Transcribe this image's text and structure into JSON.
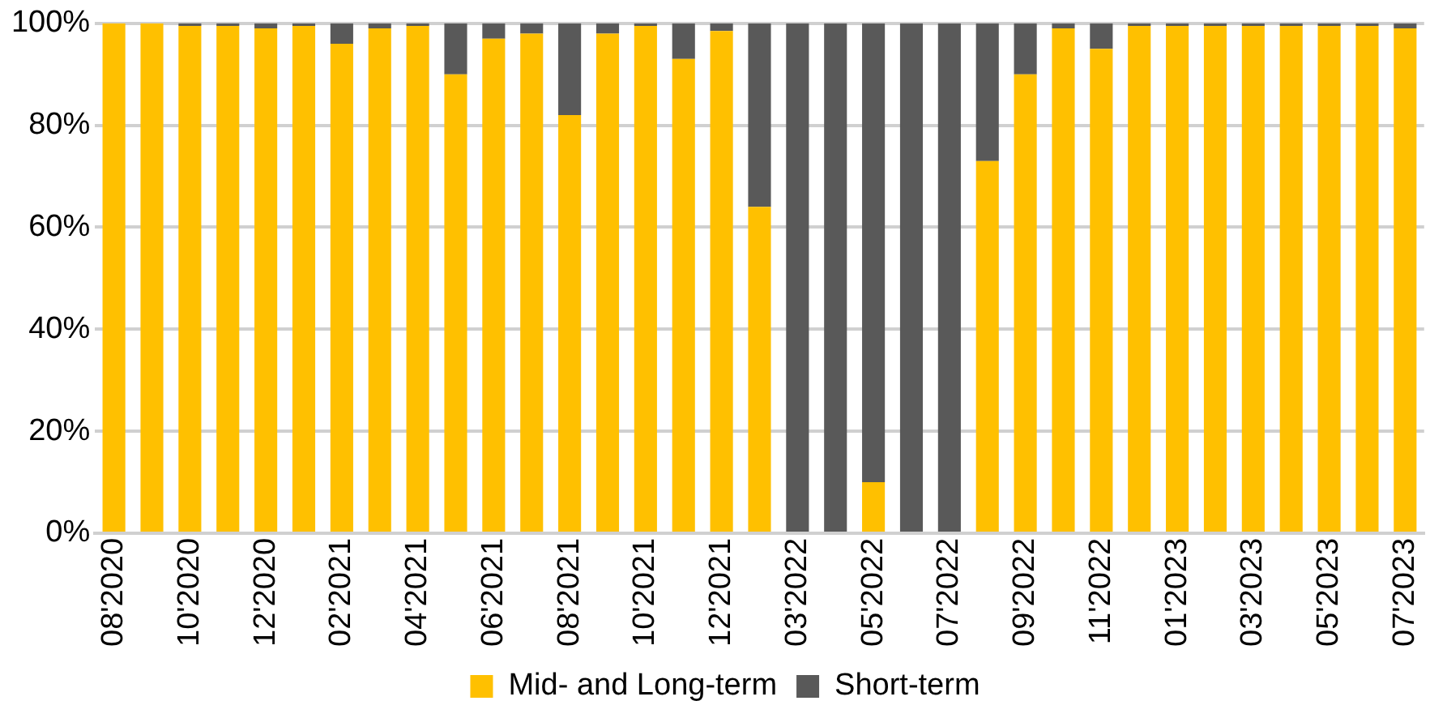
{
  "chart_data": {
    "type": "bar",
    "stacked": true,
    "categories": [
      "08'2020",
      null,
      "10'2020",
      null,
      "12'2020",
      null,
      "02'2021",
      null,
      "04'2021",
      null,
      "06'2021",
      null,
      "08'2021",
      null,
      "10'2021",
      null,
      "12'2021",
      null,
      "03'2022",
      null,
      "05'2022",
      null,
      "07'2022",
      null,
      "09'2022",
      null,
      "11'2022",
      null,
      "01'2023",
      null,
      "03'2023",
      null,
      "05'2023",
      null,
      "07'2023"
    ],
    "series": [
      {
        "name": "Mid- and Long-term",
        "color": "#ffc000",
        "values": [
          100,
          100,
          99.5,
          99.5,
          99,
          99.5,
          96,
          99,
          99.5,
          90,
          97,
          98,
          82,
          98,
          99.5,
          93,
          98.5,
          64,
          0,
          0,
          10,
          0,
          0,
          73,
          90,
          99,
          95,
          99.5,
          99.5,
          99.5,
          99.5,
          99.5,
          99.5,
          99.5,
          99
        ]
      },
      {
        "name": "Short-term",
        "color": "#595959",
        "values": [
          0,
          0,
          0.5,
          0.5,
          1,
          0.5,
          4,
          1,
          0.5,
          10,
          3,
          2,
          18,
          2,
          0.5,
          7,
          1.5,
          36,
          100,
          100,
          90,
          100,
          100,
          27,
          10,
          1,
          5,
          0.5,
          0.5,
          0.5,
          0.5,
          0.5,
          0.5,
          0.5,
          1
        ]
      }
    ],
    "ylim": [
      0,
      100
    ],
    "yticks": [
      {
        "value": 0,
        "label": "0%"
      },
      {
        "value": 20,
        "label": "20%"
      },
      {
        "value": 40,
        "label": "40%"
      },
      {
        "value": 60,
        "label": "60%"
      },
      {
        "value": 80,
        "label": "80%"
      },
      {
        "value": 100,
        "label": "100%"
      }
    ],
    "grid": "y",
    "legend": "bottom"
  }
}
